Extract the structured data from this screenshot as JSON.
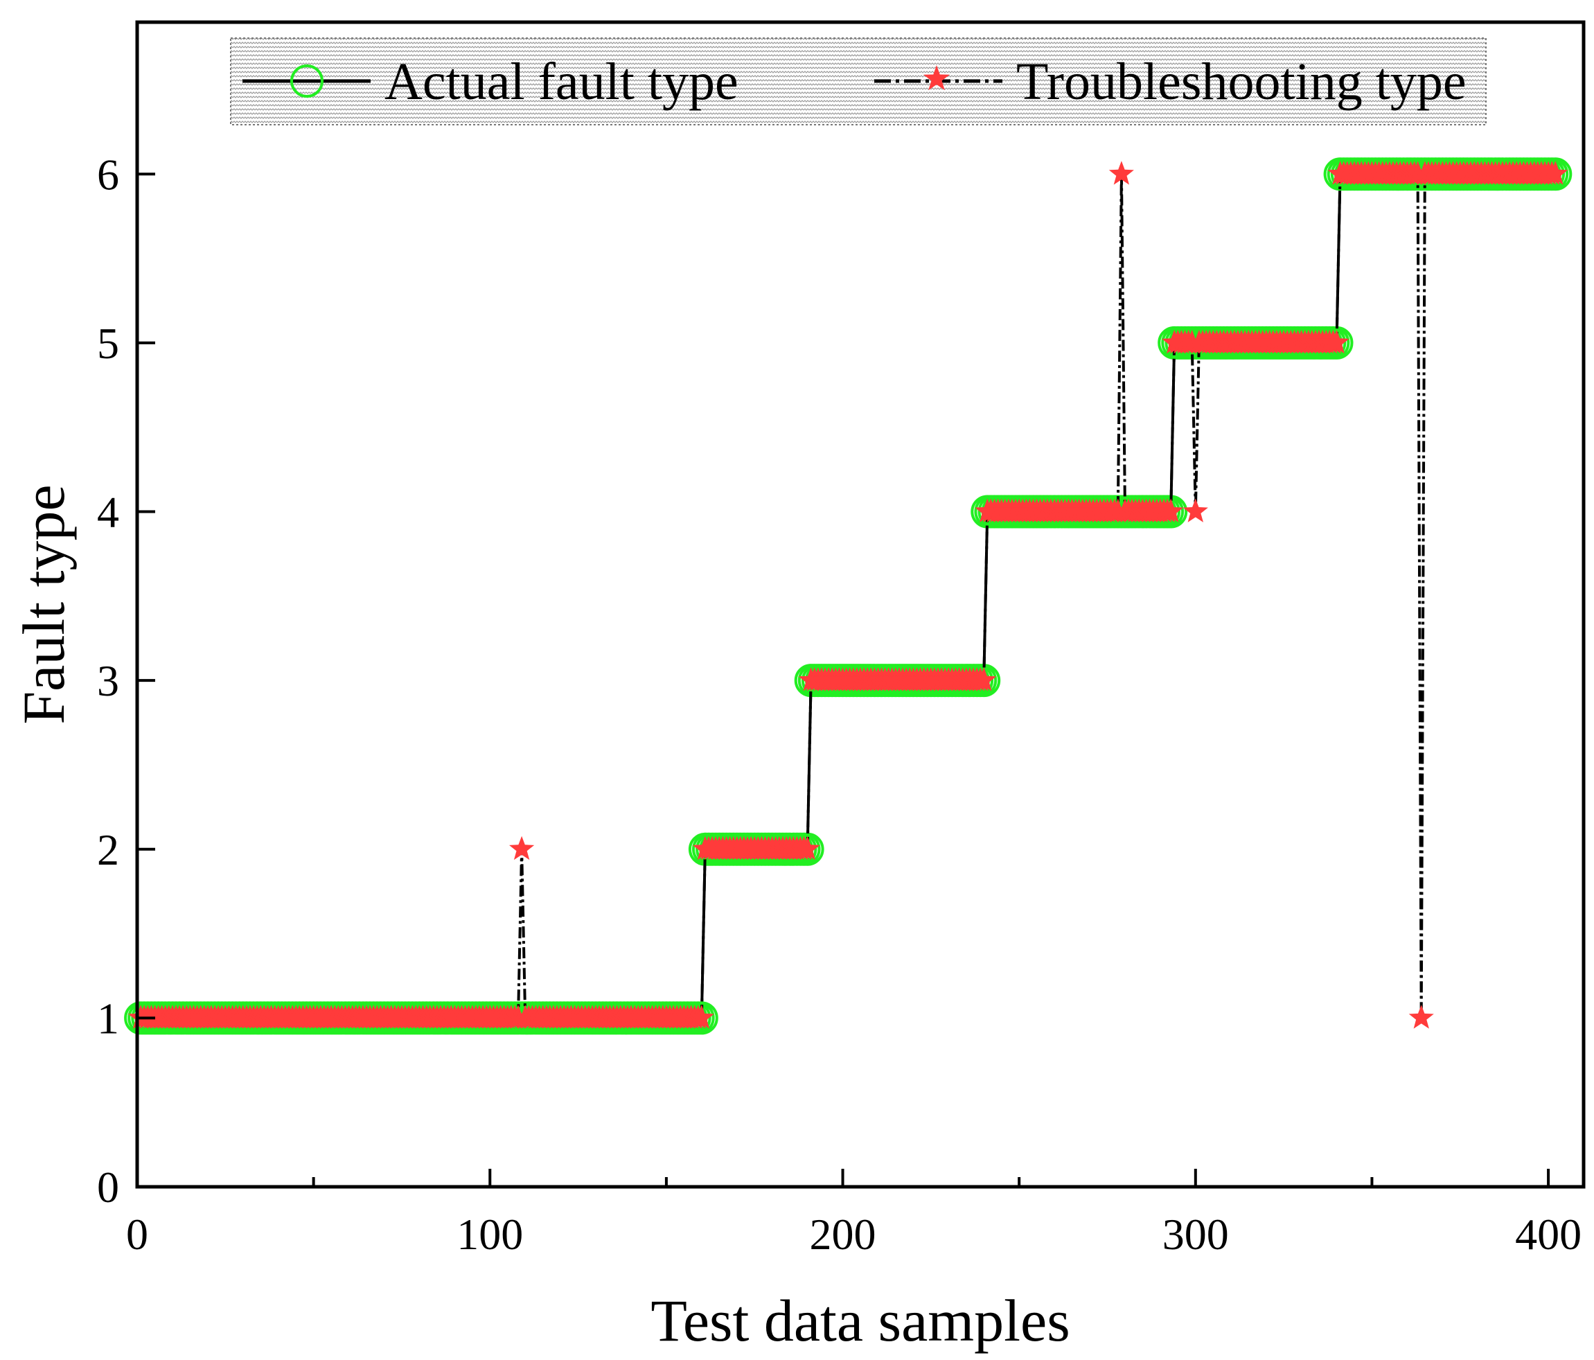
{
  "chart_data": {
    "type": "line",
    "xlabel": "Test data samples",
    "ylabel": "Fault type",
    "xlim": [
      0,
      410
    ],
    "ylim": [
      0,
      6.9
    ],
    "xticks": [
      0,
      100,
      200,
      300,
      400
    ],
    "xticks_minor": [
      50,
      150,
      250,
      350
    ],
    "yticks": [
      0,
      1,
      2,
      3,
      4,
      5,
      6
    ],
    "grid": false,
    "legend_position": "top",
    "series": [
      {
        "name": "Actual fault type",
        "style": "solid line, open circle markers",
        "marker_color": "#22ee22",
        "line_color": "#000000",
        "segments": [
          {
            "x_start": 1,
            "x_end": 160,
            "value": 1
          },
          {
            "x_start": 161,
            "x_end": 190,
            "value": 2
          },
          {
            "x_start": 191,
            "x_end": 240,
            "value": 3
          },
          {
            "x_start": 241,
            "x_end": 293,
            "value": 4
          },
          {
            "x_start": 294,
            "x_end": 340,
            "value": 5
          },
          {
            "x_start": 341,
            "x_end": 402,
            "value": 6
          }
        ]
      },
      {
        "name": "Troubleshooting type",
        "style": "dash-dot line, star markers",
        "marker_color": "#ff3b3b",
        "line_color": "#000000",
        "segments": [
          {
            "x_start": 1,
            "x_end": 160,
            "value": 1
          },
          {
            "x_start": 161,
            "x_end": 190,
            "value": 2
          },
          {
            "x_start": 191,
            "x_end": 240,
            "value": 3
          },
          {
            "x_start": 241,
            "x_end": 293,
            "value": 4
          },
          {
            "x_start": 294,
            "x_end": 340,
            "value": 5
          },
          {
            "x_start": 341,
            "x_end": 402,
            "value": 6
          }
        ],
        "misclassified_points": [
          {
            "x": 109,
            "value": 2
          },
          {
            "x": 279,
            "value": 6
          },
          {
            "x": 300,
            "value": 4
          },
          {
            "x": 364,
            "value": 1
          }
        ]
      }
    ]
  }
}
